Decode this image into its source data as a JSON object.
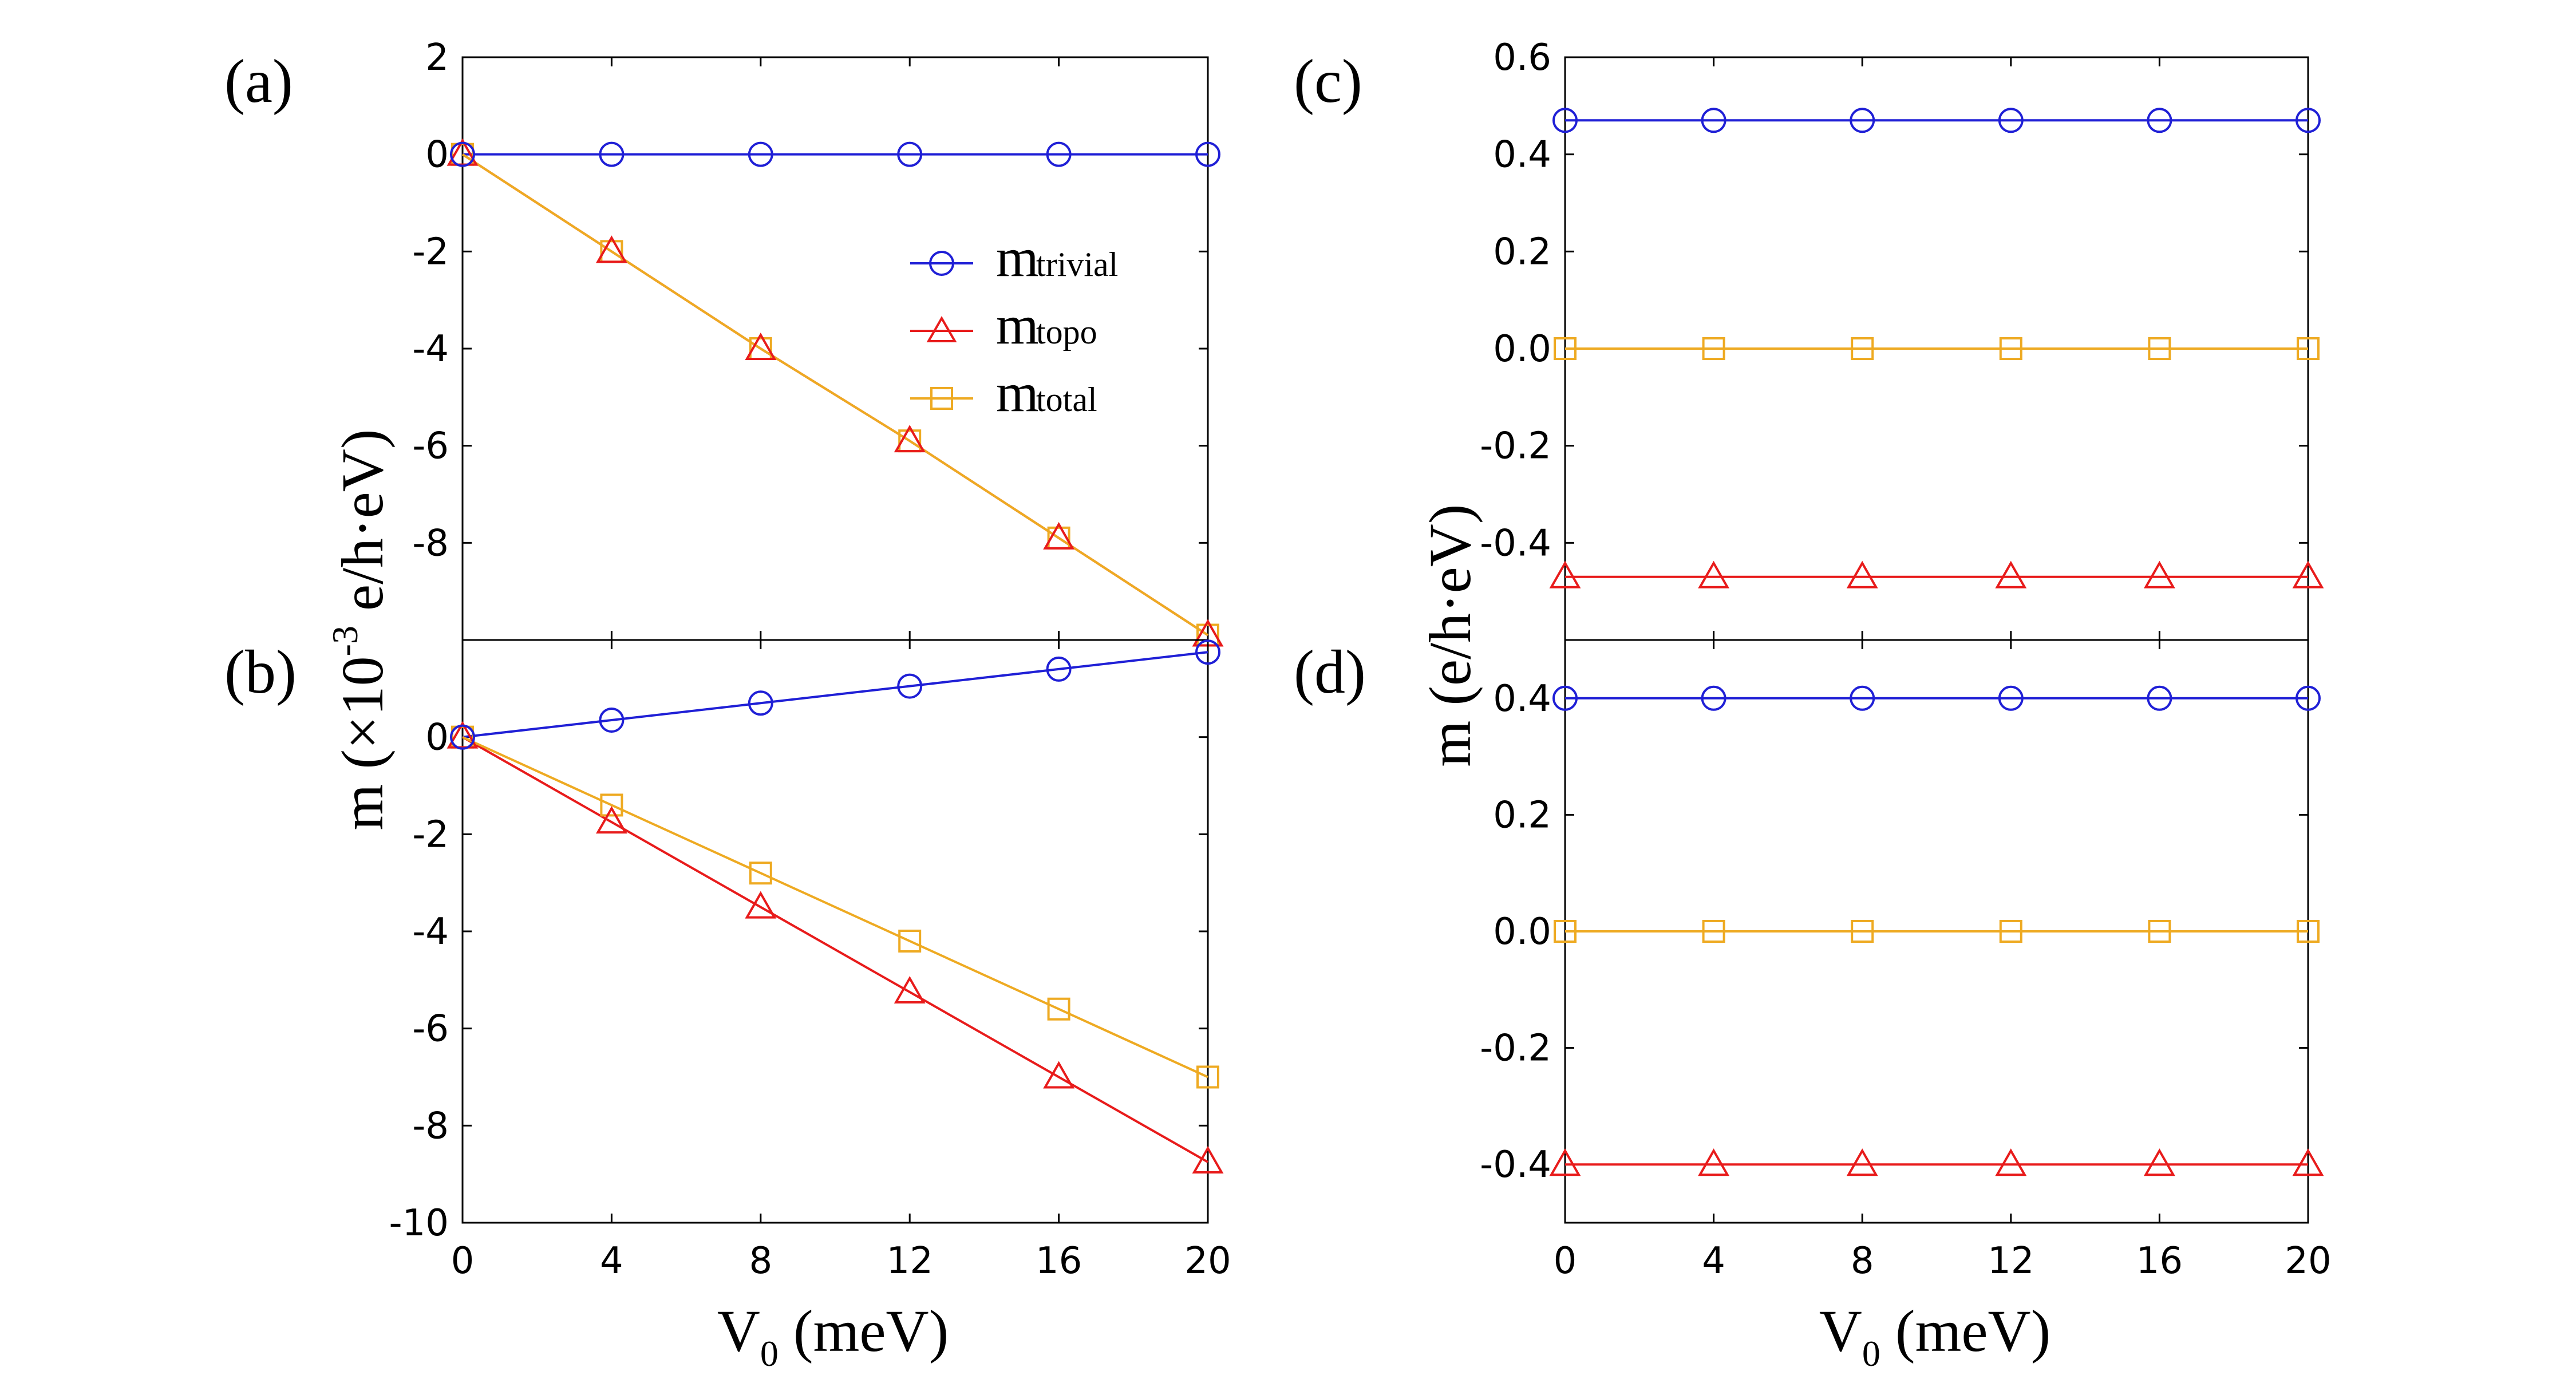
{
  "chart_data": [
    {
      "type": "line",
      "panel_label": "(a)",
      "x": [
        0,
        4,
        8,
        12,
        16,
        20
      ],
      "xlim": [
        0,
        20
      ],
      "ylim": [
        -10,
        2
      ],
      "yticks": [
        {
          "value": 2,
          "label": "2"
        },
        {
          "value": 0,
          "label": "0"
        },
        {
          "value": -2,
          "label": "-2"
        },
        {
          "value": -4,
          "label": "-4"
        },
        {
          "value": -6,
          "label": "-6"
        },
        {
          "value": -8,
          "label": "-8"
        }
      ],
      "xticks": [],
      "series": [
        {
          "name": "trivial",
          "color": "#1f1fd6",
          "marker": "circle",
          "values": [
            0,
            0,
            0,
            0,
            0,
            0
          ]
        },
        {
          "name": "topo",
          "color": "#e81b1b",
          "marker": "triangle",
          "values": [
            0,
            -2.0,
            -4.0,
            -5.9,
            -7.9,
            -9.9
          ]
        },
        {
          "name": "total",
          "color": "#eeaa22",
          "marker": "square",
          "values": [
            0,
            -2.0,
            -4.0,
            -5.9,
            -7.9,
            -9.9
          ]
        }
      ]
    },
    {
      "type": "line",
      "panel_label": "(b)",
      "x": [
        0,
        4,
        8,
        12,
        16,
        20
      ],
      "xlim": [
        0,
        20
      ],
      "ylim": [
        -10,
        2
      ],
      "yticks": [
        {
          "value": 0,
          "label": "0"
        },
        {
          "value": -2,
          "label": "-2"
        },
        {
          "value": -4,
          "label": "-4"
        },
        {
          "value": -6,
          "label": "-6"
        },
        {
          "value": -8,
          "label": "-8"
        },
        {
          "value": -10,
          "label": "-10"
        }
      ],
      "xticks": [
        {
          "value": 0,
          "label": "0"
        },
        {
          "value": 4,
          "label": "4"
        },
        {
          "value": 8,
          "label": "8"
        },
        {
          "value": 12,
          "label": "12"
        },
        {
          "value": 16,
          "label": "16"
        },
        {
          "value": 20,
          "label": "20"
        }
      ],
      "series": [
        {
          "name": "trivial",
          "color": "#1f1fd6",
          "marker": "circle",
          "values": [
            0,
            0.35,
            0.7,
            1.05,
            1.4,
            1.75
          ]
        },
        {
          "name": "topo",
          "color": "#e81b1b",
          "marker": "triangle",
          "values": [
            0,
            -1.75,
            -3.5,
            -5.25,
            -7.0,
            -8.75
          ]
        },
        {
          "name": "total",
          "color": "#eeaa22",
          "marker": "square",
          "values": [
            0,
            -1.4,
            -2.8,
            -4.2,
            -5.6,
            -7.0
          ]
        }
      ]
    },
    {
      "type": "line",
      "panel_label": "(c)",
      "x": [
        0,
        4,
        8,
        12,
        16,
        20
      ],
      "xlim": [
        0,
        20
      ],
      "ylim": [
        -0.6,
        0.6
      ],
      "yticks": [
        {
          "value": 0.6,
          "label": "0.6"
        },
        {
          "value": 0.4,
          "label": "0.4"
        },
        {
          "value": 0.2,
          "label": "0.2"
        },
        {
          "value": 0.0,
          "label": "0.0"
        },
        {
          "value": -0.2,
          "label": "-0.2"
        },
        {
          "value": -0.4,
          "label": "-0.4"
        }
      ],
      "xticks": [],
      "series": [
        {
          "name": "trivial",
          "color": "#1f1fd6",
          "marker": "circle",
          "values": [
            0.47,
            0.47,
            0.47,
            0.47,
            0.47,
            0.47
          ]
        },
        {
          "name": "topo",
          "color": "#e81b1b",
          "marker": "triangle",
          "values": [
            -0.47,
            -0.47,
            -0.47,
            -0.47,
            -0.47,
            -0.47
          ]
        },
        {
          "name": "total",
          "color": "#eeaa22",
          "marker": "square",
          "values": [
            0,
            0,
            0,
            0,
            0,
            0
          ]
        }
      ]
    },
    {
      "type": "line",
      "panel_label": "(d)",
      "x": [
        0,
        4,
        8,
        12,
        16,
        20
      ],
      "xlim": [
        0,
        20
      ],
      "ylim": [
        -0.5,
        0.5
      ],
      "yticks": [
        {
          "value": 0.4,
          "label": "0.4"
        },
        {
          "value": 0.2,
          "label": "0.2"
        },
        {
          "value": 0.0,
          "label": "0.0"
        },
        {
          "value": -0.2,
          "label": "-0.2"
        },
        {
          "value": -0.4,
          "label": "-0.4"
        }
      ],
      "xticks": [
        {
          "value": 0,
          "label": "0"
        },
        {
          "value": 4,
          "label": "4"
        },
        {
          "value": 8,
          "label": "8"
        },
        {
          "value": 12,
          "label": "12"
        },
        {
          "value": 16,
          "label": "16"
        },
        {
          "value": 20,
          "label": "20"
        }
      ],
      "series": [
        {
          "name": "trivial",
          "color": "#1f1fd6",
          "marker": "circle",
          "values": [
            0.4,
            0.4,
            0.4,
            0.4,
            0.4,
            0.4
          ]
        },
        {
          "name": "topo",
          "color": "#e81b1b",
          "marker": "triangle",
          "values": [
            -0.4,
            -0.4,
            -0.4,
            -0.4,
            -0.4,
            -0.4
          ]
        },
        {
          "name": "total",
          "color": "#eeaa22",
          "marker": "square",
          "values": [
            0,
            0,
            0,
            0,
            0,
            0
          ]
        }
      ]
    }
  ],
  "axes": {
    "left_ylabel": {
      "main": "m (×10",
      "exponent": "-3",
      "unit": " e/h·eV)"
    },
    "right_ylabel": "m (e/h·eV)",
    "xlabel": {
      "main": "V",
      "subscript": "0",
      "unit": " (meV)"
    }
  },
  "legend": {
    "placement": "upper-right of panel (a)",
    "items": [
      {
        "symbol": "m",
        "label": "trivial",
        "color": "#1f1fd6",
        "marker": "circle"
      },
      {
        "symbol": "m",
        "label": "topo",
        "color": "#e81b1b",
        "marker": "triangle"
      },
      {
        "symbol": "m",
        "label": "total",
        "color": "#eeaa22",
        "marker": "square"
      }
    ]
  }
}
